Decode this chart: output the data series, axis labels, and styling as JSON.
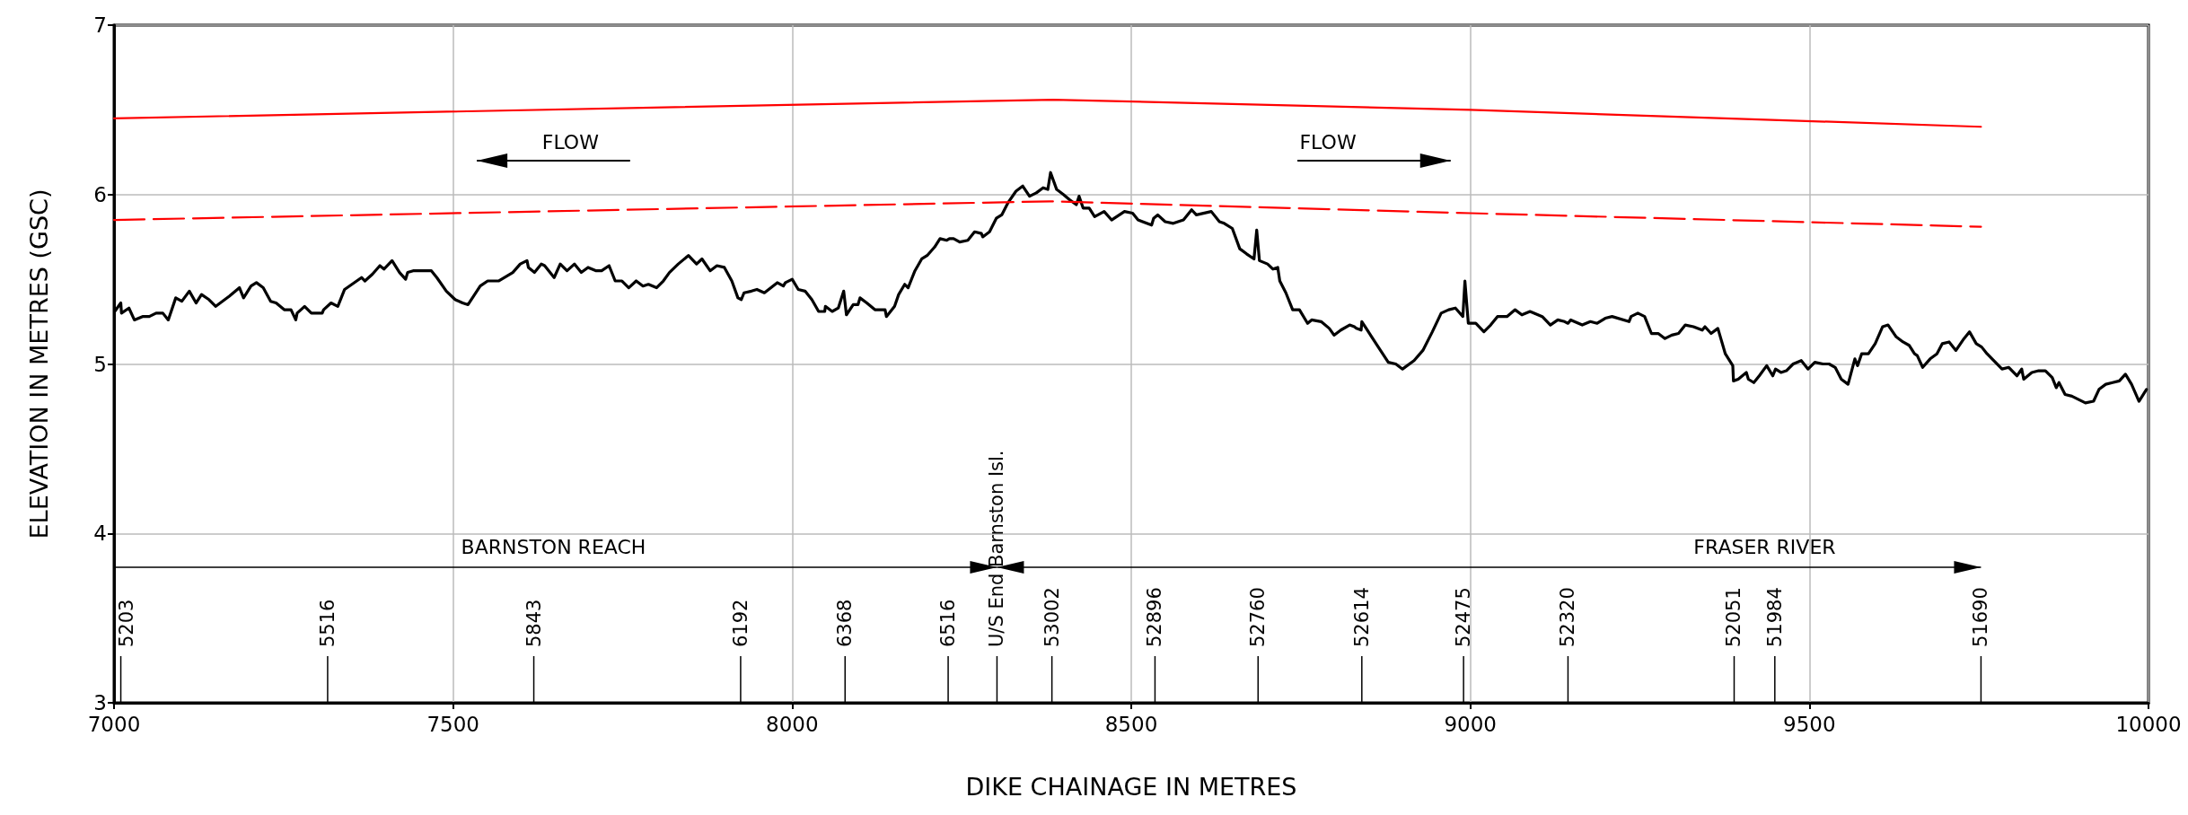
{
  "chart_data": {
    "type": "line",
    "xlabel": "DIKE CHAINAGE IN METRES",
    "ylabel": "ELEVATION IN METRES (GSC)",
    "xlim": [
      7000,
      10000
    ],
    "xticks": [
      7000,
      7500,
      8000,
      8500,
      9000,
      9500,
      10000
    ],
    "ylim": [
      3,
      7
    ],
    "yticks": [
      3,
      4,
      5,
      6,
      7
    ],
    "grid": true,
    "marker": "none",
    "annotations": [
      "FLOW",
      "FLOW",
      "BARNSTON REACH",
      "FRASER RIVER",
      "5203",
      "5516",
      "5843",
      "6192",
      "6368",
      "6516",
      "U/S End Barnston Isl.",
      "53002",
      "52896",
      "52760",
      "52614",
      "52475",
      "52320",
      "52051",
      "51984",
      "51690"
    ],
    "series": [
      {
        "color": "#000000",
        "line_style": "solid",
        "x": [
          7001,
          7010,
          7011,
          7022,
          7030,
          7042,
          7052,
          7062,
          7072,
          7080,
          7091,
          7100,
          7111,
          7121,
          7129,
          7140,
          7150,
          7170,
          7185,
          7191,
          7202,
          7210,
          7220,
          7231,
          7239,
          7251,
          7261,
          7268,
          7270,
          7281,
          7291,
          7307,
          7309,
          7320,
          7330,
          7340,
          7365,
          7370,
          7381,
          7392,
          7398,
          7410,
          7421,
          7430,
          7433,
          7441,
          7453,
          7468,
          7476,
          7490,
          7503,
          7514,
          7522,
          7540,
          7551,
          7567,
          7588,
          7599,
          7609,
          7611,
          7620,
          7630,
          7635,
          7649,
          7658,
          7668,
          7679,
          7689,
          7699,
          7711,
          7719,
          7730,
          7739,
          7749,
          7759,
          7770,
          7780,
          7788,
          7800,
          7810,
          7819,
          7832,
          7847,
          7859,
          7867,
          7879,
          7889,
          7900,
          7911,
          7920,
          7925,
          7929,
          7940,
          7948,
          7959,
          7978,
          7987,
          7990,
          8000,
          8009,
          8019,
          8029,
          8039,
          8048,
          8049,
          8059,
          8068,
          8076,
          8080,
          8090,
          8097,
          8100,
          8110,
          8122,
          8134,
          8137,
          8139,
          8151,
          8157,
          8166,
          8171,
          8181,
          8191,
          8199,
          8210,
          8218,
          8228,
          8232,
          8238,
          8247,
          8259,
          8269,
          8279,
          8281,
          8291,
          8301,
          8309,
          8318,
          8330,
          8340,
          8350,
          8360,
          8370,
          8377,
          8381,
          8390,
          8400,
          8409,
          8419,
          8423,
          8429,
          8438,
          8446,
          8460,
          8471,
          8490,
          8502,
          8510,
          8530,
          8533,
          8539,
          8550,
          8562,
          8577,
          8589,
          8596,
          8618,
          8630,
          8637,
          8649,
          8660,
          8670,
          8681,
          8685,
          8689,
          8701,
          8709,
          8716,
          8719,
          8728,
          8738,
          8748,
          8760,
          8766,
          8780,
          8792,
          8799,
          8809,
          8822,
          8829,
          8832,
          8839,
          8840,
          8861,
          8879,
          8890,
          8900,
          8917,
          8930,
          8944,
          8957,
          8968,
          8978,
          8989,
          8992,
          8997,
          9008,
          9020,
          9030,
          9040,
          9054,
          9066,
          9076,
          9088,
          9106,
          9118,
          9129,
          9139,
          9144,
          9148,
          9165,
          9177,
          9187,
          9199,
          9209,
          9234,
          9237,
          9247,
          9257,
          9267,
          9277,
          9287,
          9297,
          9307,
          9317,
          9329,
          9342,
          9346,
          9355,
          9365,
          9376,
          9387,
          9388,
          9395,
          9407,
          9410,
          9418,
          9426,
          9437,
          9446,
          9450,
          9458,
          9466,
          9476,
          9488,
          9498,
          9508,
          9520,
          9529,
          9538,
          9547,
          9557,
          9567,
          9571,
          9577,
          9587,
          9597,
          9608,
          9616,
          9628,
          9638,
          9647,
          9655,
          9659,
          9667,
          9678,
          9688,
          9696,
          9706,
          9716,
          9728,
          9736,
          9746,
          9754,
          9762,
          9784,
          9794,
          9806,
          9813,
          9816,
          9828,
          9838,
          9848,
          9858,
          9864,
          9868,
          9877,
          9887,
          9907,
          9919,
          9927,
          9937,
          9947,
          9957,
          9966,
          9975,
          9986,
          9997
        ],
        "values": [
          5.31,
          5.36,
          5.3,
          5.33,
          5.26,
          5.28,
          5.28,
          5.3,
          5.3,
          5.26,
          5.39,
          5.37,
          5.43,
          5.36,
          5.41,
          5.38,
          5.34,
          5.4,
          5.45,
          5.39,
          5.46,
          5.48,
          5.45,
          5.37,
          5.36,
          5.32,
          5.32,
          5.26,
          5.3,
          5.34,
          5.3,
          5.3,
          5.32,
          5.36,
          5.34,
          5.44,
          5.51,
          5.49,
          5.53,
          5.58,
          5.56,
          5.61,
          5.54,
          5.5,
          5.54,
          5.55,
          5.55,
          5.55,
          5.51,
          5.43,
          5.38,
          5.36,
          5.35,
          5.46,
          5.49,
          5.49,
          5.54,
          5.59,
          5.61,
          5.57,
          5.54,
          5.59,
          5.58,
          5.51,
          5.59,
          5.55,
          5.59,
          5.54,
          5.57,
          5.55,
          5.55,
          5.58,
          5.49,
          5.49,
          5.45,
          5.49,
          5.46,
          5.47,
          5.45,
          5.49,
          5.54,
          5.59,
          5.64,
          5.59,
          5.62,
          5.55,
          5.58,
          5.57,
          5.49,
          5.39,
          5.38,
          5.42,
          5.43,
          5.44,
          5.42,
          5.48,
          5.46,
          5.48,
          5.5,
          5.44,
          5.43,
          5.38,
          5.31,
          5.31,
          5.34,
          5.31,
          5.33,
          5.43,
          5.29,
          5.35,
          5.35,
          5.39,
          5.36,
          5.32,
          5.32,
          5.32,
          5.28,
          5.34,
          5.41,
          5.47,
          5.45,
          5.55,
          5.62,
          5.64,
          5.69,
          5.74,
          5.73,
          5.74,
          5.74,
          5.72,
          5.73,
          5.78,
          5.77,
          5.75,
          5.78,
          5.86,
          5.88,
          5.95,
          6.02,
          6.05,
          5.99,
          6.01,
          6.04,
          6.03,
          6.13,
          6.03,
          6.0,
          5.97,
          5.94,
          5.99,
          5.92,
          5.92,
          5.87,
          5.9,
          5.85,
          5.9,
          5.89,
          5.85,
          5.82,
          5.86,
          5.88,
          5.84,
          5.83,
          5.85,
          5.91,
          5.88,
          5.9,
          5.84,
          5.83,
          5.8,
          5.68,
          5.65,
          5.62,
          5.79,
          5.61,
          5.59,
          5.56,
          5.57,
          5.49,
          5.42,
          5.32,
          5.32,
          5.24,
          5.26,
          5.25,
          5.21,
          5.17,
          5.2,
          5.23,
          5.22,
          5.21,
          5.2,
          5.25,
          5.12,
          5.01,
          5.0,
          4.97,
          5.02,
          5.08,
          5.19,
          5.3,
          5.32,
          5.33,
          5.28,
          5.49,
          5.24,
          5.24,
          5.19,
          5.23,
          5.28,
          5.28,
          5.32,
          5.29,
          5.31,
          5.28,
          5.23,
          5.26,
          5.25,
          5.24,
          5.26,
          5.23,
          5.25,
          5.24,
          5.27,
          5.28,
          5.25,
          5.28,
          5.3,
          5.28,
          5.18,
          5.18,
          5.15,
          5.17,
          5.18,
          5.23,
          5.22,
          5.2,
          5.22,
          5.18,
          5.21,
          5.06,
          4.99,
          4.9,
          4.91,
          4.95,
          4.91,
          4.89,
          4.93,
          4.99,
          4.93,
          4.97,
          4.95,
          4.96,
          5.0,
          5.02,
          4.97,
          5.01,
          5.0,
          5.0,
          4.98,
          4.91,
          4.88,
          5.03,
          4.99,
          5.06,
          5.06,
          5.12,
          5.22,
          5.23,
          5.16,
          5.13,
          5.11,
          5.06,
          5.05,
          4.98,
          5.03,
          5.06,
          5.12,
          5.13,
          5.08,
          5.15,
          5.19,
          5.12,
          5.1,
          5.06,
          4.97,
          4.98,
          4.93,
          4.97,
          4.91,
          4.95,
          4.96,
          4.96,
          4.92,
          4.86,
          4.89,
          4.82,
          4.81,
          4.77,
          4.78,
          4.85,
          4.88,
          4.89,
          4.9,
          4.94,
          4.88,
          4.78,
          4.85
        ]
      },
      {
        "color": "#ff0000",
        "line_style": "solid",
        "x": [
          7000,
          8385,
          9000,
          9753
        ],
        "values": [
          6.45,
          6.56,
          6.5,
          6.4
        ]
      },
      {
        "color": "#ff0000",
        "line_style": "dashed",
        "x": [
          7000,
          8380,
          9000,
          9753
        ],
        "values": [
          5.85,
          5.96,
          5.89,
          5.81
        ]
      }
    ]
  }
}
